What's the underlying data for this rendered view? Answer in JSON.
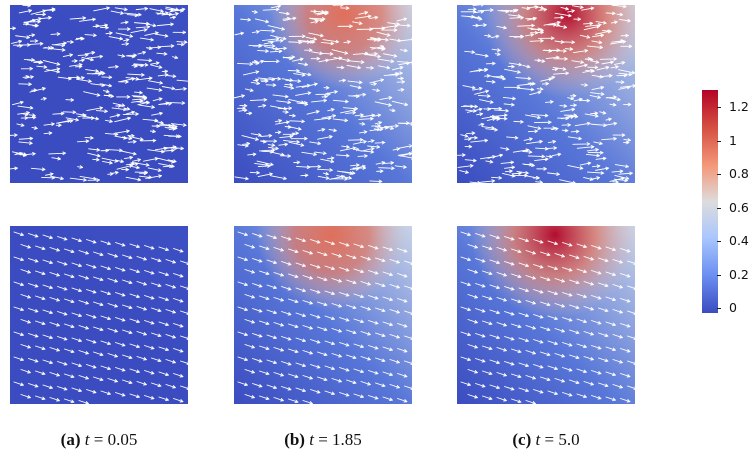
{
  "colorbar": {
    "ticks": [
      "1.2",
      "1",
      "0.8",
      "0.6",
      "0.4",
      "0.2",
      "0"
    ],
    "colors": [
      "#b40426",
      "#d55042",
      "#f4987a",
      "#dddcdc",
      "#aac7fd",
      "#6c8ff1",
      "#3b4cc0"
    ]
  },
  "captions": [
    {
      "tag": "(a)",
      "var": "t",
      "rest": " = 0.05"
    },
    {
      "tag": "(b)",
      "var": "t",
      "rest": " = 1.85"
    },
    {
      "tag": "(c)",
      "var": "t",
      "rest": " = 5.0"
    }
  ],
  "panels": [
    {
      "row": "top",
      "time": 0.05,
      "heat": 0.0,
      "arrows": "random"
    },
    {
      "row": "top",
      "time": 1.85,
      "heat": 0.6,
      "arrows": "random"
    },
    {
      "row": "top",
      "time": 5.0,
      "heat": 1.0,
      "arrows": "random"
    },
    {
      "row": "bottom",
      "time": 0.05,
      "heat": 0.0,
      "arrows": "regular"
    },
    {
      "row": "bottom",
      "time": 1.85,
      "heat": 0.6,
      "arrows": "regular"
    },
    {
      "row": "bottom",
      "time": 5.0,
      "heat": 1.0,
      "arrows": "regular"
    }
  ]
}
